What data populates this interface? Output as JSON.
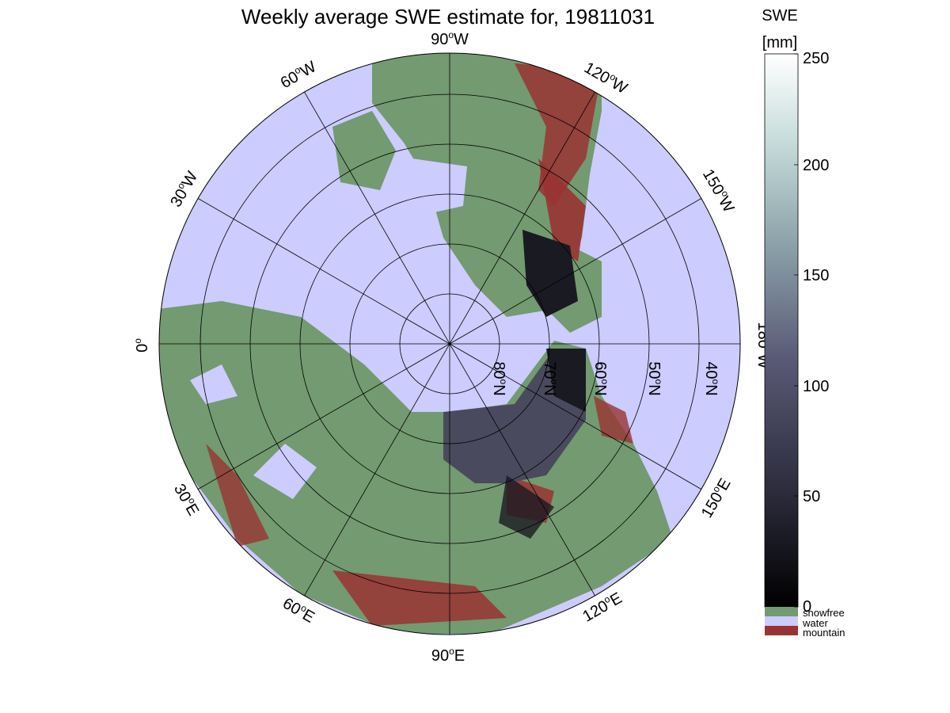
{
  "title": "Weekly average SWE estimate for, 19811031",
  "colorbar": {
    "label_line1": "SWE",
    "label_line2": "[mm]",
    "ticks": [
      "0",
      "50",
      "100",
      "150",
      "200",
      "250"
    ],
    "legend": [
      "snowfree",
      "water",
      "mountain"
    ]
  },
  "longitude_labels": {
    "top": "90",
    "top_suffix": "W",
    "bottom": "90",
    "bottom_suffix": "E",
    "left": "0",
    "right": "180",
    "right_suffix": "W",
    "w60": "60",
    "w60_suffix": "W",
    "w120": "120",
    "w120_suffix": "W",
    "w30": "30",
    "w30_suffix": "W",
    "w150": "150",
    "w150_suffix": "W",
    "e30": "30",
    "e30_suffix": "E",
    "e150": "150",
    "e150_suffix": "E",
    "e60": "60",
    "e60_suffix": "E",
    "e120": "120",
    "e120_suffix": "E"
  },
  "latitude_labels": {
    "l80": "80",
    "l70": "70",
    "l60": "60",
    "l50": "50",
    "l40": "40",
    "suffix": "N"
  },
  "colors": {
    "ocean": "#ccccff",
    "land": "#739a70",
    "mountain": "#993333",
    "snow_dark": "#1a1a22",
    "snow_mid": "#4a4a5e"
  }
}
